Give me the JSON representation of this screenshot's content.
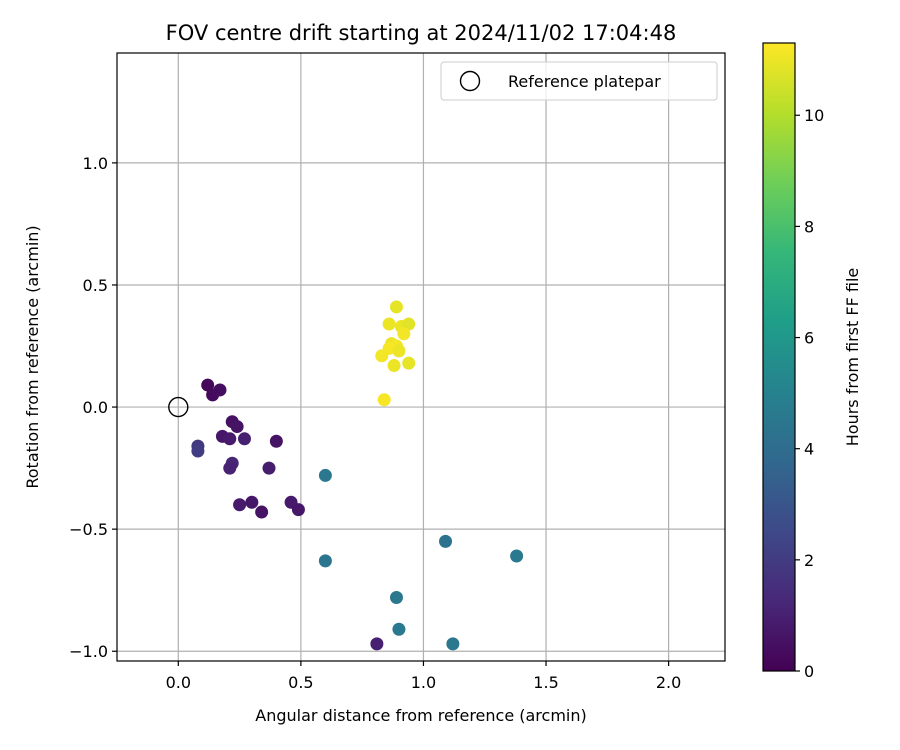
{
  "chart_data": {
    "type": "scatter",
    "title": "FOV centre drift starting at 2024/11/02 17:04:48",
    "xlabel": "Angular distance from reference (arcmin)",
    "ylabel": "Rotation from reference (arcmin)",
    "xlim": [
      -0.25,
      2.23
    ],
    "ylim": [
      -1.04,
      1.45
    ],
    "x_ticks": [
      0.0,
      0.5,
      1.0,
      1.5,
      2.0
    ],
    "x_tick_labels": [
      "0.0",
      "0.5",
      "1.0",
      "1.5",
      "2.0"
    ],
    "y_ticks": [
      -1.0,
      -0.5,
      0.0,
      0.5,
      1.0
    ],
    "y_tick_labels": [
      "−1.0",
      "−0.5",
      "0.0",
      "0.5",
      "1.0"
    ],
    "grid": true,
    "legend": {
      "placement": "top-right",
      "entries": [
        "Reference platepar"
      ]
    },
    "reference_point": {
      "x": 0.0,
      "y": 0.0,
      "label": "Reference platepar"
    },
    "colorbar": {
      "label": "Hours from first FF file",
      "range": [
        0,
        11.3
      ],
      "ticks": [
        0,
        2,
        4,
        6,
        8,
        10
      ],
      "tick_labels": [
        "0",
        "2",
        "4",
        "6",
        "8",
        "10"
      ],
      "colormap": "viridis",
      "colormap_stops": [
        "#440154",
        "#482878",
        "#3e4989",
        "#31688e",
        "#26828e",
        "#1f9e89",
        "#35b779",
        "#6ece58",
        "#b5de2b",
        "#fde725"
      ]
    },
    "points": [
      {
        "x": 0.12,
        "y": 0.09,
        "hours": 0.2
      },
      {
        "x": 0.17,
        "y": 0.07,
        "hours": 0.4
      },
      {
        "x": 0.14,
        "y": 0.05,
        "hours": 0.3
      },
      {
        "x": 0.22,
        "y": -0.06,
        "hours": 0.5
      },
      {
        "x": 0.24,
        "y": -0.08,
        "hours": 0.6
      },
      {
        "x": 0.18,
        "y": -0.12,
        "hours": 0.7
      },
      {
        "x": 0.21,
        "y": -0.13,
        "hours": 0.8
      },
      {
        "x": 0.27,
        "y": -0.13,
        "hours": 1.0
      },
      {
        "x": 0.4,
        "y": -0.14,
        "hours": 0.6
      },
      {
        "x": 0.08,
        "y": -0.16,
        "hours": 1.9
      },
      {
        "x": 0.08,
        "y": -0.18,
        "hours": 2.0
      },
      {
        "x": 0.22,
        "y": -0.23,
        "hours": 1.2
      },
      {
        "x": 0.21,
        "y": -0.25,
        "hours": 1.1
      },
      {
        "x": 0.37,
        "y": -0.25,
        "hours": 0.9
      },
      {
        "x": 0.25,
        "y": -0.4,
        "hours": 0.8
      },
      {
        "x": 0.3,
        "y": -0.39,
        "hours": 0.7
      },
      {
        "x": 0.34,
        "y": -0.43,
        "hours": 0.6
      },
      {
        "x": 0.46,
        "y": -0.39,
        "hours": 0.8
      },
      {
        "x": 0.49,
        "y": -0.42,
        "hours": 0.7
      },
      {
        "x": 0.81,
        "y": -0.97,
        "hours": 1.0
      },
      {
        "x": 0.6,
        "y": -0.28,
        "hours": 4.5
      },
      {
        "x": 0.6,
        "y": -0.63,
        "hours": 4.4
      },
      {
        "x": 0.89,
        "y": -0.78,
        "hours": 4.5
      },
      {
        "x": 0.9,
        "y": -0.91,
        "hours": 4.6
      },
      {
        "x": 1.09,
        "y": -0.55,
        "hours": 4.3
      },
      {
        "x": 1.12,
        "y": -0.97,
        "hours": 4.5
      },
      {
        "x": 1.38,
        "y": -0.61,
        "hours": 4.6
      },
      {
        "x": 0.89,
        "y": 0.41,
        "hours": 10.9
      },
      {
        "x": 0.86,
        "y": 0.34,
        "hours": 11.0
      },
      {
        "x": 0.91,
        "y": 0.33,
        "hours": 11.0
      },
      {
        "x": 0.94,
        "y": 0.34,
        "hours": 10.8
      },
      {
        "x": 0.92,
        "y": 0.3,
        "hours": 11.1
      },
      {
        "x": 0.87,
        "y": 0.26,
        "hours": 11.0
      },
      {
        "x": 0.89,
        "y": 0.25,
        "hours": 11.1
      },
      {
        "x": 0.86,
        "y": 0.24,
        "hours": 11.2
      },
      {
        "x": 0.9,
        "y": 0.23,
        "hours": 11.0
      },
      {
        "x": 0.83,
        "y": 0.21,
        "hours": 11.1
      },
      {
        "x": 0.88,
        "y": 0.17,
        "hours": 11.0
      },
      {
        "x": 0.94,
        "y": 0.18,
        "hours": 10.9
      },
      {
        "x": 0.84,
        "y": 0.03,
        "hours": 11.2
      }
    ]
  }
}
